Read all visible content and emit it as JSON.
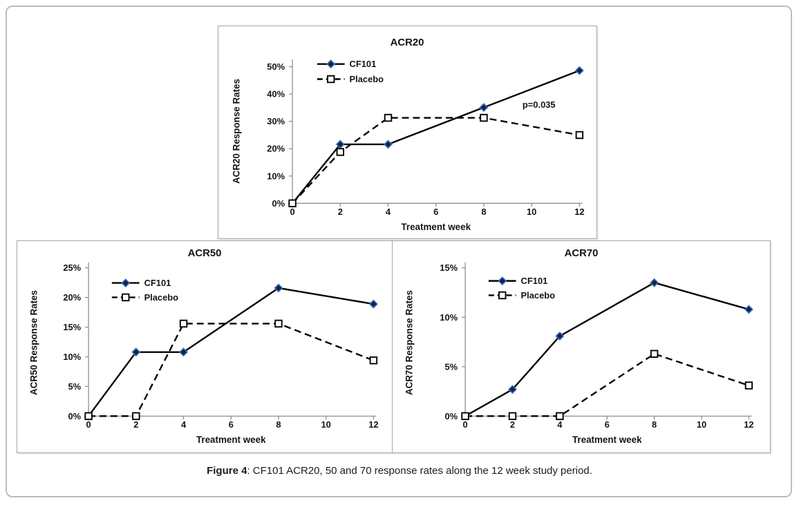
{
  "figure": {
    "caption_label": "Figure 4",
    "caption_text": ": CF101 ACR20, 50 and 70 response rates along the 12 week study period."
  },
  "colors": {
    "line": "#000000",
    "axis": "#8f8f8f",
    "cf101_marker_fill": "#15233f",
    "cf101_marker_edge": "#3a6cc0",
    "placebo_marker_fill": "#ffffff",
    "placebo_marker_edge": "#000000"
  },
  "chart_data": [
    {
      "type": "line",
      "title": "ACR20",
      "xlabel": "Treatment week",
      "ylabel": "ACR20 Response Rates",
      "xlim": [
        0,
        12
      ],
      "ylim": [
        0,
        50
      ],
      "x_ticks": [
        0,
        2,
        4,
        6,
        8,
        10,
        12
      ],
      "y_ticks": [
        0,
        10,
        20,
        30,
        40,
        50
      ],
      "y_tick_suffix": "%",
      "grid": false,
      "legend_position": "upper-left-inside",
      "annotation": "p=0.035",
      "x": [
        0,
        2,
        4,
        8,
        12
      ],
      "series": [
        {
          "name": "CF101",
          "line_style": "solid",
          "marker": "filled-diamond",
          "values": [
            0,
            21.6,
            21.6,
            35.1,
            48.6
          ]
        },
        {
          "name": "Placebo",
          "line_style": "dashed",
          "marker": "open-square",
          "values": [
            0,
            18.8,
            31.3,
            31.3,
            25.0
          ]
        }
      ]
    },
    {
      "type": "line",
      "title": "ACR50",
      "xlabel": "Treatment week",
      "ylabel": "ACR50 Response Rates",
      "xlim": [
        0,
        12
      ],
      "ylim": [
        0,
        25
      ],
      "x_ticks": [
        0,
        2,
        4,
        6,
        8,
        10,
        12
      ],
      "y_ticks": [
        0,
        5,
        10,
        15,
        20,
        25
      ],
      "y_tick_suffix": "%",
      "grid": false,
      "legend_position": "upper-left-inside",
      "annotation": null,
      "x": [
        0,
        2,
        4,
        8,
        12
      ],
      "series": [
        {
          "name": "CF101",
          "line_style": "solid",
          "marker": "filled-diamond",
          "values": [
            0,
            10.8,
            10.8,
            21.6,
            18.9
          ]
        },
        {
          "name": "Placebo",
          "line_style": "dashed",
          "marker": "open-square",
          "values": [
            0,
            0,
            15.6,
            15.6,
            9.4
          ]
        }
      ]
    },
    {
      "type": "line",
      "title": "ACR70",
      "xlabel": "Treatment week",
      "ylabel": "ACR70 Response Rates",
      "xlim": [
        0,
        12
      ],
      "ylim": [
        0,
        15
      ],
      "x_ticks": [
        0,
        2,
        4,
        6,
        8,
        10,
        12
      ],
      "y_ticks": [
        0,
        5,
        10,
        15
      ],
      "y_tick_suffix": "%",
      "grid": false,
      "legend_position": "upper-left-inside",
      "annotation": null,
      "x": [
        0,
        2,
        4,
        8,
        12
      ],
      "series": [
        {
          "name": "CF101",
          "line_style": "solid",
          "marker": "filled-diamond",
          "values": [
            0,
            2.7,
            8.1,
            13.5,
            10.8
          ]
        },
        {
          "name": "Placebo",
          "line_style": "dashed",
          "marker": "open-square",
          "values": [
            0,
            0,
            0,
            6.3,
            3.1
          ]
        }
      ]
    }
  ]
}
